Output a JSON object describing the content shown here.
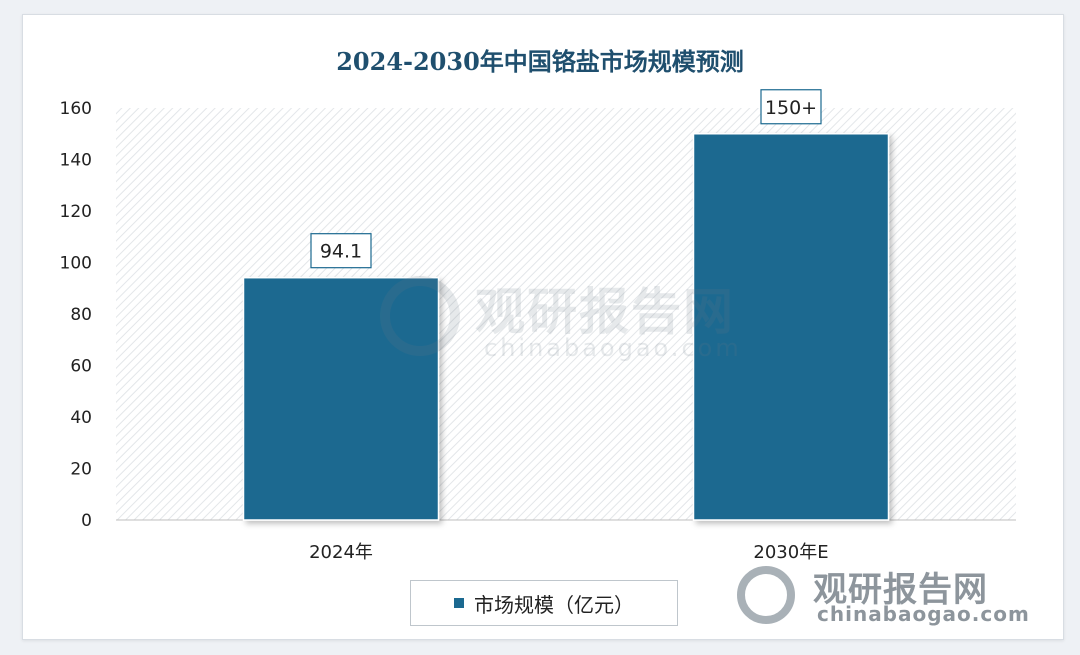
{
  "chart_data": {
    "type": "bar",
    "title": "2024-2030年中国铬盐市场规模预测",
    "categories": [
      "2024年",
      "2030年E"
    ],
    "series": [
      {
        "name": "市场规模（亿元）",
        "values": [
          94.1,
          150
        ],
        "labels": [
          "94.1",
          "150+"
        ]
      }
    ],
    "ylim": [
      0,
      160
    ],
    "yticks": [
      0,
      20,
      40,
      60,
      80,
      100,
      120,
      140,
      160
    ],
    "xlabel": "",
    "ylabel": "",
    "grid": false,
    "legend": "bottom",
    "bar_color": "#1b6990"
  },
  "watermark": {
    "cn": "观研报告网",
    "en": "chinabaogao.com"
  }
}
